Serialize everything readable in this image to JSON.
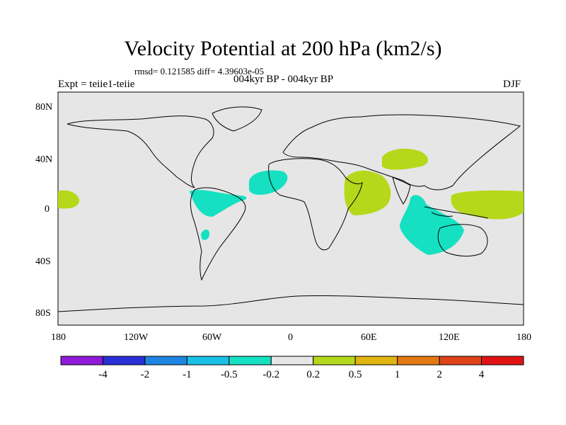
{
  "title": "Velocity Potential at 200 hPa (km2/s)",
  "stats": "rmsd= 0.121585 diff= 4.39603e-05",
  "expt": "Expt = teiie1-teiie",
  "period": "004kyr BP - 004kyr BP",
  "season": "DJF",
  "lat_labels": [
    "80N",
    "40N",
    "0",
    "40S",
    "80S"
  ],
  "lon_labels": [
    "180",
    "120W",
    "60W",
    "0",
    "60E",
    "120E",
    "180"
  ],
  "colorbar": {
    "colors": [
      "#8f1bd8",
      "#2a2fd6",
      "#1e86e0",
      "#19c0e6",
      "#15e0c2",
      "#e6e6e6",
      "#b5d81a",
      "#e0b510",
      "#e27912",
      "#e0421a",
      "#e01414"
    ],
    "labels": [
      "-4",
      "-2",
      "-1",
      "-0.5",
      "-0.2",
      "0.2",
      "0.5",
      "1",
      "2",
      "4"
    ]
  },
  "colors": {
    "background": "#e6e6e6",
    "negative_fill": "#15e0c2",
    "positive_fill": "#b5d81a"
  }
}
